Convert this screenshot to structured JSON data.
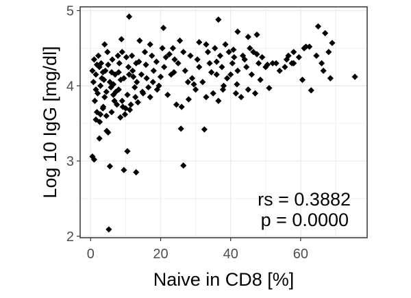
{
  "chart_data": {
    "type": "scatter",
    "xlabel": "Naive in CD8 [%]",
    "ylabel": "Log 10 IgG [mg/dl]",
    "xlim": [
      -3,
      79
    ],
    "ylim": [
      1.98,
      5.05
    ],
    "x_ticks": [
      0,
      20,
      40,
      60
    ],
    "y_ticks": [
      2,
      3,
      4,
      5
    ],
    "grid": true,
    "marker": "diamond",
    "marker_color": "#000000",
    "panel_border_color": "#333333",
    "grid_color": "#ebebeb",
    "annotations": [
      "rs = 0.3882",
      "p = 0.0000"
    ],
    "points": [
      [
        0.5,
        3.06
      ],
      [
        1,
        3.02
      ],
      [
        5.5,
        2.93
      ],
      [
        9.5,
        2.88
      ],
      [
        13,
        2.85
      ],
      [
        5.2,
        2.09
      ],
      [
        10.5,
        3.13
      ],
      [
        26.5,
        2.94
      ],
      [
        32.5,
        3.42
      ],
      [
        25.8,
        3.43
      ],
      [
        2.5,
        3.3
      ],
      [
        5.0,
        3.38
      ],
      [
        1.5,
        3.55
      ],
      [
        2.8,
        3.62
      ],
      [
        4.5,
        3.6
      ],
      [
        6.0,
        3.65
      ],
      [
        8.5,
        3.58
      ],
      [
        10.0,
        3.7
      ],
      [
        3.5,
        3.7
      ],
      [
        7.5,
        3.75
      ],
      [
        1.2,
        3.8
      ],
      [
        2.0,
        3.9
      ],
      [
        4.0,
        3.85
      ],
      [
        6.5,
        3.88
      ],
      [
        8.0,
        3.95
      ],
      [
        9.0,
        3.8
      ],
      [
        11.5,
        3.75
      ],
      [
        13.5,
        3.78
      ],
      [
        15.0,
        3.9
      ],
      [
        17.0,
        3.85
      ],
      [
        19.0,
        3.95
      ],
      [
        22.0,
        3.88
      ],
      [
        24.5,
        3.75
      ],
      [
        26.0,
        3.72
      ],
      [
        28.0,
        3.82
      ],
      [
        30.0,
        3.95
      ],
      [
        33.0,
        3.85
      ],
      [
        35.0,
        3.9
      ],
      [
        36.5,
        3.8
      ],
      [
        38.0,
        4.0
      ],
      [
        41.5,
        3.9
      ],
      [
        43.0,
        3.85
      ],
      [
        45.0,
        3.95
      ],
      [
        47.0,
        3.9
      ],
      [
        51.0,
        3.97
      ],
      [
        60.5,
        4.08
      ],
      [
        63.0,
        3.94
      ],
      [
        66.5,
        4.2
      ],
      [
        68.5,
        4.1
      ],
      [
        75.5,
        4.12
      ],
      [
        0.8,
        4.05
      ],
      [
        1.5,
        4.15
      ],
      [
        2.5,
        4.25
      ],
      [
        3.2,
        4.1
      ],
      [
        4.2,
        4.2
      ],
      [
        5.5,
        4.05
      ],
      [
        7.0,
        4.15
      ],
      [
        8.2,
        4.3
      ],
      [
        9.5,
        4.1
      ],
      [
        10.8,
        4.25
      ],
      [
        12.0,
        4.2
      ],
      [
        13.2,
        4.05
      ],
      [
        14.5,
        4.15
      ],
      [
        16.0,
        4.1
      ],
      [
        18.0,
        4.2
      ],
      [
        19.5,
        4.0
      ],
      [
        21.0,
        4.25
      ],
      [
        23.0,
        4.15
      ],
      [
        25.0,
        4.3
      ],
      [
        27.0,
        4.2
      ],
      [
        29.0,
        4.1
      ],
      [
        31.0,
        4.25
      ],
      [
        32.0,
        4.05
      ],
      [
        34.0,
        4.3
      ],
      [
        36.0,
        4.15
      ],
      [
        37.5,
        4.25
      ],
      [
        39.0,
        4.1
      ],
      [
        40.5,
        4.3
      ],
      [
        42.0,
        4.2
      ],
      [
        44.0,
        4.35
      ],
      [
        46.0,
        4.15
      ],
      [
        48.0,
        4.3
      ],
      [
        50.0,
        4.25
      ],
      [
        52.0,
        4.3
      ],
      [
        54.0,
        4.2
      ],
      [
        56.0,
        4.35
      ],
      [
        58.0,
        4.3
      ],
      [
        1.0,
        4.35
      ],
      [
        2.2,
        4.4
      ],
      [
        3.0,
        4.3
      ],
      [
        4.8,
        4.45
      ],
      [
        6.2,
        4.35
      ],
      [
        7.8,
        4.4
      ],
      [
        9.0,
        4.45
      ],
      [
        10.2,
        4.38
      ],
      [
        11.8,
        4.4
      ],
      [
        13.8,
        4.32
      ],
      [
        15.5,
        4.45
      ],
      [
        17.5,
        4.4
      ],
      [
        20.5,
        4.5
      ],
      [
        22.5,
        4.42
      ],
      [
        24.0,
        4.35
      ],
      [
        26.5,
        4.45
      ],
      [
        28.5,
        4.4
      ],
      [
        30.5,
        4.35
      ],
      [
        33.5,
        4.45
      ],
      [
        35.5,
        4.5
      ],
      [
        37.0,
        4.4
      ],
      [
        39.5,
        4.45
      ],
      [
        41.0,
        4.38
      ],
      [
        43.5,
        4.4
      ],
      [
        45.5,
        4.5
      ],
      [
        47.5,
        4.42
      ],
      [
        49.0,
        4.38
      ],
      [
        53.0,
        4.3
      ],
      [
        55.5,
        4.25
      ],
      [
        57.5,
        4.3
      ],
      [
        59.5,
        4.38
      ],
      [
        61.0,
        4.5
      ],
      [
        62.5,
        4.52
      ],
      [
        64.5,
        4.4
      ],
      [
        66.0,
        4.3
      ],
      [
        68.0,
        4.45
      ],
      [
        4.0,
        4.55
      ],
      [
        8.8,
        4.62
      ],
      [
        11.0,
        4.92
      ],
      [
        14.0,
        4.6
      ],
      [
        17.0,
        4.55
      ],
      [
        20.8,
        4.77
      ],
      [
        25.5,
        4.6
      ],
      [
        31.0,
        4.58
      ],
      [
        36.5,
        4.88
      ],
      [
        42.0,
        4.72
      ],
      [
        45.0,
        4.65
      ],
      [
        47.5,
        4.68
      ],
      [
        58.0,
        4.45
      ],
      [
        65.0,
        4.79
      ],
      [
        67.0,
        4.7
      ],
      [
        69.0,
        4.57
      ],
      [
        61.5,
        4.52
      ],
      [
        2.8,
        4.0
      ],
      [
        5.8,
        3.98
      ],
      [
        8.6,
        4.08
      ],
      [
        12.6,
        3.98
      ],
      [
        16.5,
        3.98
      ],
      [
        29.5,
        4.02
      ],
      [
        37.8,
        3.95
      ],
      [
        41.8,
        4.02
      ],
      [
        48.5,
        4.08
      ],
      [
        3.6,
        3.72
      ],
      [
        6.8,
        3.8
      ],
      [
        9.8,
        3.62
      ],
      [
        11.2,
        3.68
      ],
      [
        1.8,
        3.65
      ],
      [
        2.6,
        3.52
      ],
      [
        4.6,
        3.4
      ],
      [
        12.2,
        4.12
      ],
      [
        18.8,
        4.32
      ],
      [
        23.8,
        4.18
      ],
      [
        27.8,
        4.05
      ],
      [
        34.5,
        4.18
      ],
      [
        40.0,
        4.15
      ],
      [
        44.5,
        4.25
      ],
      [
        1.5,
        3.95
      ],
      [
        3.8,
        4.08
      ],
      [
        7.2,
        3.92
      ],
      [
        10.5,
        3.88
      ],
      [
        14.8,
        3.92
      ],
      [
        5.0,
        4.28
      ],
      [
        6.0,
        4.18
      ],
      [
        8.0,
        4.18
      ],
      [
        11.0,
        4.15
      ],
      [
        13.0,
        4.3
      ],
      [
        15.8,
        4.28
      ],
      [
        17.8,
        4.05
      ],
      [
        20.0,
        4.12
      ],
      [
        21.5,
        4.38
      ],
      [
        23.5,
        4.5
      ],
      [
        33.0,
        4.55
      ],
      [
        36.0,
        4.32
      ],
      [
        38.5,
        4.55
      ],
      [
        40.8,
        4.48
      ],
      [
        46.5,
        4.45
      ],
      [
        50.5,
        4.28
      ],
      [
        56.5,
        4.4
      ],
      [
        0.5,
        4.2
      ],
      [
        1.8,
        4.28
      ],
      [
        3.5,
        4.18
      ],
      [
        4.5,
        3.92
      ],
      [
        6.5,
        4.02
      ],
      [
        9.2,
        3.72
      ],
      [
        12.8,
        3.85
      ]
    ]
  }
}
